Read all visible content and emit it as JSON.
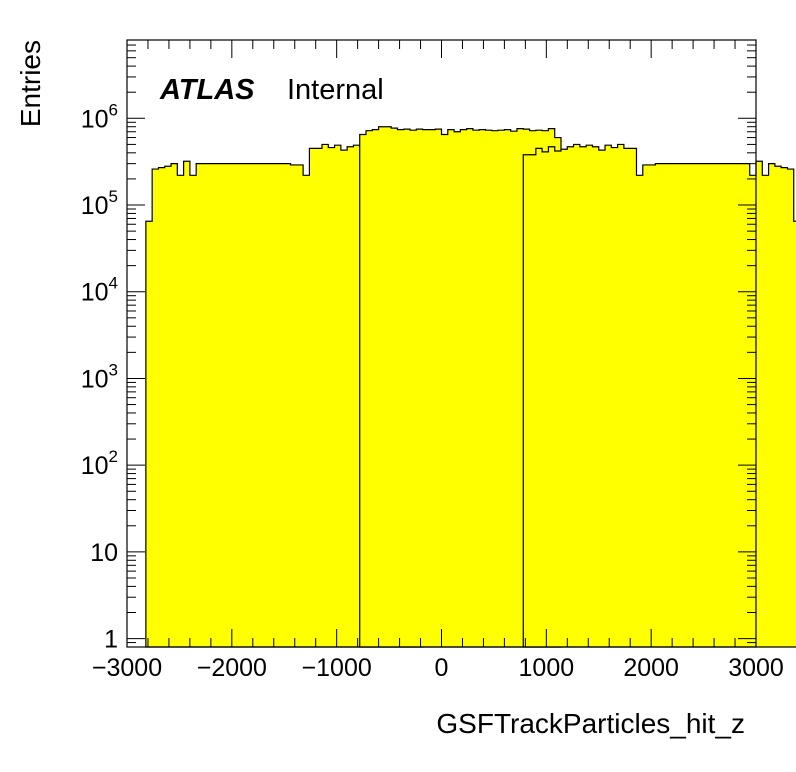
{
  "chart_data": {
    "type": "histogram",
    "title": "",
    "xlabel": "GSFTrackParticles_hit_z",
    "ylabel": "Entries",
    "xlim": [
      -3000,
      3000
    ],
    "ylim": [
      0.8,
      8000000
    ],
    "log_y": true,
    "x_ticks": [
      {
        "value": -3000,
        "label": "−3000"
      },
      {
        "value": -2000,
        "label": "−2000"
      },
      {
        "value": -1000,
        "label": "−1000"
      },
      {
        "value": 0,
        "label": "0"
      },
      {
        "value": 1000,
        "label": "1000"
      },
      {
        "value": 2000,
        "label": "2000"
      },
      {
        "value": 3000,
        "label": "3000"
      }
    ],
    "y_ticks": [
      {
        "value": 1,
        "base": "1",
        "exp": ""
      },
      {
        "value": 10,
        "base": "10",
        "exp": ""
      },
      {
        "value": 100,
        "base": "10",
        "exp": "2"
      },
      {
        "value": 1000,
        "base": "10",
        "exp": "3"
      },
      {
        "value": 10000,
        "base": "10",
        "exp": "4"
      },
      {
        "value": 100000,
        "base": "10",
        "exp": "5"
      },
      {
        "value": 1000000,
        "base": "10",
        "exp": "6"
      }
    ],
    "label_bold": "ATLAS",
    "label_status": "Internal",
    "fill_color": "#ffff00",
    "line_color": "#000000",
    "bin_width": 60,
    "segments": [
      {
        "x_start": -2820,
        "values": [
          65000,
          260000,
          270000,
          280000,
          300000,
          220000,
          320000,
          220000,
          300000,
          300000,
          300000,
          300000,
          300000,
          300000,
          300000,
          300000,
          300000,
          300000,
          300000,
          300000,
          300000,
          300000,
          300000,
          290000,
          290000,
          220000,
          450000,
          450000,
          500000,
          460000,
          490000,
          430000,
          470000,
          490000,
          470000,
          500000,
          470000,
          440000,
          420000,
          470000,
          410000,
          450000,
          380000,
          380000
        ]
      },
      {
        "x_start": -780,
        "values": [
          650000,
          720000,
          740000,
          800000,
          800000,
          770000,
          740000,
          750000,
          730000,
          750000,
          740000,
          740000,
          750000,
          650000,
          740000,
          700000,
          740000,
          760000,
          730000,
          740000,
          730000,
          720000,
          730000,
          740000,
          710000,
          760000,
          750000,
          720000,
          730000,
          720000,
          760000,
          600000
        ]
      },
      {
        "x_start": 780,
        "values": [
          380000,
          380000,
          450000,
          410000,
          470000,
          420000,
          440000,
          470000,
          500000,
          470000,
          490000,
          470000,
          430000,
          490000,
          460000,
          500000,
          450000,
          450000,
          220000,
          290000,
          290000,
          300000,
          300000,
          300000,
          300000,
          300000,
          300000,
          300000,
          300000,
          300000,
          300000,
          300000,
          300000,
          300000,
          300000,
          300000,
          220000,
          320000,
          220000,
          300000,
          280000,
          270000,
          260000,
          65000
        ]
      }
    ]
  }
}
